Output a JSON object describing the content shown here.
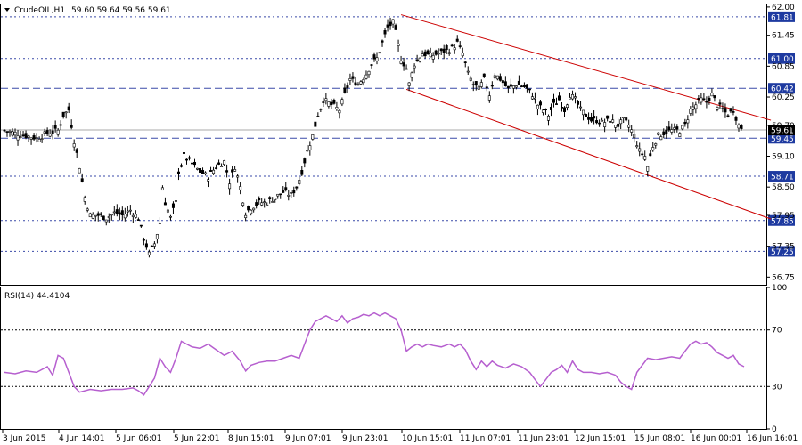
{
  "chart_data": [
    {
      "type": "candlestick",
      "title": "CrudeOIL,H1",
      "ohlc_header": "59.60 59.64 59.56 59.61",
      "last_price": 59.61,
      "ylim": [
        56.6,
        62.05
      ],
      "y_ticks": [
        "62.00",
        "61.45",
        "60.85",
        "60.25",
        "59.70",
        "59.10",
        "58.50",
        "57.95",
        "57.35",
        "56.75"
      ],
      "x_ticks": [
        "3 Jun 2015",
        "4 Jun 14:01",
        "5 Jun 06:01",
        "5 Jun 22:01",
        "8 Jun 15:01",
        "9 Jun 07:01",
        "9 Jun 23:01",
        "10 Jun 15:01",
        "11 Jun 07:01",
        "11 Jun 23:01",
        "12 Jun 15:01",
        "15 Jun 08:01",
        "16 Jun 00:01",
        "16 Jun 16:01"
      ],
      "close_path": [
        [
          0,
          59.6
        ],
        [
          4,
          59.55
        ],
        [
          8,
          59.5
        ],
        [
          12,
          59.45
        ],
        [
          16,
          59.55
        ],
        [
          20,
          59.6
        ],
        [
          22,
          59.9
        ],
        [
          24,
          60.0
        ],
        [
          26,
          59.4
        ],
        [
          28,
          58.9
        ],
        [
          30,
          58.3
        ],
        [
          32,
          57.95
        ],
        [
          35,
          57.95
        ],
        [
          38,
          57.9
        ],
        [
          41,
          58.0
        ],
        [
          44,
          57.95
        ],
        [
          47,
          58.05
        ],
        [
          50,
          57.9
        ],
        [
          52,
          57.5
        ],
        [
          54,
          57.2
        ],
        [
          56,
          57.4
        ],
        [
          58,
          57.8
        ],
        [
          59,
          58.5
        ],
        [
          60,
          58.2
        ],
        [
          62,
          57.9
        ],
        [
          64,
          58.2
        ],
        [
          65,
          58.8
        ],
        [
          67,
          59.1
        ],
        [
          70,
          58.95
        ],
        [
          73,
          58.8
        ],
        [
          76,
          58.7
        ],
        [
          79,
          58.9
        ],
        [
          82,
          59.0
        ],
        [
          84,
          58.6
        ],
        [
          86,
          58.9
        ],
        [
          88,
          58.5
        ],
        [
          90,
          58.0
        ],
        [
          92,
          58.1
        ],
        [
          95,
          58.2
        ],
        [
          98,
          58.2
        ],
        [
          101,
          58.3
        ],
        [
          104,
          58.4
        ],
        [
          107,
          58.35
        ],
        [
          109,
          58.5
        ],
        [
          111,
          58.8
        ],
        [
          113,
          59.2
        ],
        [
          115,
          59.5
        ],
        [
          117,
          59.9
        ],
        [
          119,
          60.2
        ],
        [
          122,
          60.1
        ],
        [
          125,
          60.0
        ],
        [
          127,
          60.3
        ],
        [
          129,
          60.6
        ],
        [
          132,
          60.5
        ],
        [
          135,
          60.7
        ],
        [
          137,
          60.9
        ],
        [
          139,
          61.0
        ],
        [
          141,
          61.3
        ],
        [
          143,
          61.6
        ],
        [
          145,
          61.7
        ],
        [
          146,
          61.5
        ],
        [
          148,
          61.0
        ],
        [
          150,
          60.8
        ],
        [
          151,
          60.5
        ],
        [
          153,
          60.9
        ],
        [
          156,
          61.1
        ],
        [
          159,
          61.05
        ],
        [
          162,
          61.1
        ],
        [
          165,
          61.15
        ],
        [
          167,
          61.2
        ],
        [
          169,
          61.3
        ],
        [
          171,
          61.1
        ],
        [
          173,
          60.7
        ],
        [
          175,
          60.5
        ],
        [
          177,
          60.4
        ],
        [
          179,
          60.6
        ],
        [
          181,
          60.3
        ],
        [
          183,
          60.7
        ],
        [
          185,
          60.6
        ],
        [
          188,
          60.4
        ],
        [
          191,
          60.5
        ],
        [
          194,
          60.45
        ],
        [
          197,
          60.3
        ],
        [
          199,
          60.1
        ],
        [
          201,
          60.0
        ],
        [
          203,
          59.9
        ],
        [
          205,
          60.1
        ],
        [
          207,
          60.2
        ],
        [
          209,
          60.0
        ],
        [
          211,
          60.3
        ],
        [
          213,
          60.2
        ],
        [
          215,
          60.0
        ],
        [
          217,
          59.9
        ],
        [
          219,
          59.8
        ],
        [
          221,
          59.8
        ],
        [
          223,
          59.75
        ],
        [
          226,
          59.8
        ],
        [
          229,
          59.7
        ],
        [
          231,
          59.8
        ],
        [
          233,
          59.7
        ],
        [
          235,
          59.5
        ],
        [
          237,
          59.2
        ],
        [
          239,
          59.1
        ],
        [
          240,
          58.9
        ],
        [
          242,
          59.3
        ],
        [
          244,
          59.5
        ],
        [
          246,
          59.55
        ],
        [
          249,
          59.6
        ],
        [
          252,
          59.6
        ],
        [
          254,
          59.7
        ],
        [
          256,
          60.0
        ],
        [
          258,
          60.1
        ],
        [
          260,
          60.2
        ],
        [
          262,
          60.15
        ],
        [
          264,
          60.3
        ],
        [
          266,
          60.1
        ],
        [
          268,
          60.0
        ],
        [
          270,
          59.9
        ],
        [
          272,
          60.0
        ],
        [
          274,
          59.7
        ],
        [
          276,
          59.61
        ]
      ],
      "channel": [
        {
          "from": [
            148,
            61.85
          ],
          "to": [
            286,
            59.8
          ]
        },
        {
          "from": [
            150,
            60.4
          ],
          "to": [
            286,
            57.88
          ]
        }
      ],
      "levels": [
        {
          "value": 61.81,
          "label": "61.81",
          "style": "dotted"
        },
        {
          "value": 61.0,
          "label": "61.00",
          "style": "dotted"
        },
        {
          "value": 60.42,
          "label": "60.42",
          "style": "dashed"
        },
        {
          "value": 59.45,
          "label": "59.45",
          "style": "dashed"
        },
        {
          "value": 58.71,
          "label": "58.71",
          "style": "dotted"
        },
        {
          "value": 57.85,
          "label": "57.85",
          "style": "dotted"
        },
        {
          "value": 57.25,
          "label": "57.25",
          "style": "dotted"
        }
      ]
    },
    {
      "type": "line",
      "title": "RSI(14) 44.4104",
      "ylim": [
        0,
        100
      ],
      "y_ticks": [
        "100",
        "70",
        "30",
        "0"
      ],
      "levels": [
        70,
        30
      ],
      "values": [
        [
          0,
          40
        ],
        [
          4,
          39
        ],
        [
          8,
          41
        ],
        [
          12,
          40
        ],
        [
          16,
          44
        ],
        [
          18,
          38
        ],
        [
          20,
          52
        ],
        [
          22,
          50
        ],
        [
          24,
          40
        ],
        [
          26,
          30
        ],
        [
          28,
          26
        ],
        [
          32,
          28
        ],
        [
          36,
          27
        ],
        [
          40,
          28
        ],
        [
          44,
          28
        ],
        [
          48,
          29
        ],
        [
          50,
          27
        ],
        [
          52,
          24
        ],
        [
          54,
          30
        ],
        [
          56,
          36
        ],
        [
          58,
          50
        ],
        [
          60,
          44
        ],
        [
          62,
          40
        ],
        [
          64,
          50
        ],
        [
          66,
          62
        ],
        [
          68,
          60
        ],
        [
          70,
          58
        ],
        [
          73,
          57
        ],
        [
          76,
          60
        ],
        [
          79,
          56
        ],
        [
          82,
          52
        ],
        [
          85,
          55
        ],
        [
          88,
          48
        ],
        [
          90,
          41
        ],
        [
          92,
          45
        ],
        [
          95,
          47
        ],
        [
          98,
          48
        ],
        [
          101,
          48
        ],
        [
          104,
          50
        ],
        [
          107,
          52
        ],
        [
          110,
          50
        ],
        [
          112,
          60
        ],
        [
          114,
          70
        ],
        [
          116,
          76
        ],
        [
          118,
          78
        ],
        [
          120,
          80
        ],
        [
          122,
          78
        ],
        [
          124,
          76
        ],
        [
          126,
          80
        ],
        [
          128,
          75
        ],
        [
          130,
          78
        ],
        [
          132,
          79
        ],
        [
          134,
          81
        ],
        [
          136,
          80
        ],
        [
          138,
          82
        ],
        [
          140,
          80
        ],
        [
          142,
          82
        ],
        [
          144,
          80
        ],
        [
          146,
          78
        ],
        [
          148,
          70
        ],
        [
          150,
          55
        ],
        [
          152,
          58
        ],
        [
          154,
          60
        ],
        [
          156,
          58
        ],
        [
          158,
          60
        ],
        [
          160,
          59
        ],
        [
          163,
          58
        ],
        [
          166,
          60
        ],
        [
          168,
          58
        ],
        [
          170,
          60
        ],
        [
          172,
          56
        ],
        [
          174,
          48
        ],
        [
          176,
          42
        ],
        [
          178,
          48
        ],
        [
          180,
          44
        ],
        [
          182,
          48
        ],
        [
          184,
          45
        ],
        [
          187,
          43
        ],
        [
          190,
          46
        ],
        [
          193,
          44
        ],
        [
          196,
          40
        ],
        [
          198,
          35
        ],
        [
          200,
          30
        ],
        [
          202,
          35
        ],
        [
          204,
          40
        ],
        [
          206,
          42
        ],
        [
          208,
          45
        ],
        [
          210,
          40
        ],
        [
          212,
          48
        ],
        [
          214,
          42
        ],
        [
          216,
          40
        ],
        [
          219,
          40
        ],
        [
          222,
          39
        ],
        [
          225,
          40
        ],
        [
          228,
          38
        ],
        [
          230,
          33
        ],
        [
          232,
          30
        ],
        [
          234,
          28
        ],
        [
          236,
          40
        ],
        [
          238,
          45
        ],
        [
          240,
          50
        ],
        [
          243,
          49
        ],
        [
          246,
          50
        ],
        [
          249,
          51
        ],
        [
          252,
          50
        ],
        [
          254,
          55
        ],
        [
          256,
          60
        ],
        [
          258,
          62
        ],
        [
          260,
          60
        ],
        [
          262,
          61
        ],
        [
          264,
          58
        ],
        [
          266,
          54
        ],
        [
          268,
          52
        ],
        [
          270,
          50
        ],
        [
          272,
          52
        ],
        [
          274,
          46
        ],
        [
          276,
          44
        ]
      ]
    }
  ]
}
